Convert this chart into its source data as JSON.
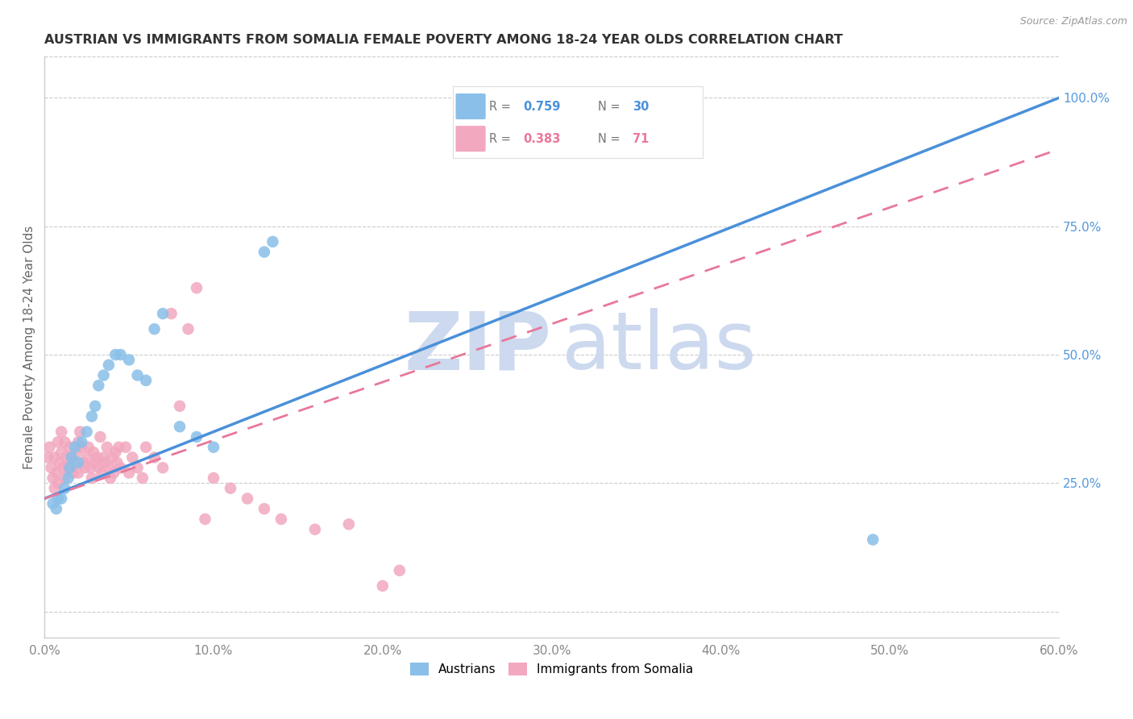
{
  "title": "AUSTRIAN VS IMMIGRANTS FROM SOMALIA FEMALE POVERTY AMONG 18-24 YEAR OLDS CORRELATION CHART",
  "source": "Source: ZipAtlas.com",
  "ylabel": "Female Poverty Among 18-24 Year Olds",
  "right_yticks": [
    0.0,
    0.25,
    0.5,
    0.75,
    1.0
  ],
  "right_yticklabels": [
    "",
    "25.0%",
    "50.0%",
    "75.0%",
    "100.0%"
  ],
  "xlim": [
    0.0,
    0.6
  ],
  "ylim": [
    -0.05,
    1.08
  ],
  "blue_R": 0.759,
  "blue_N": 30,
  "pink_R": 0.383,
  "pink_N": 71,
  "blue_color": "#89bfe8",
  "pink_color": "#f2a8bf",
  "blue_line_color": "#4a90d9",
  "pink_line_color": "#e8789a",
  "blue_line_x0": 0.0,
  "blue_line_y0": 0.22,
  "blue_line_x1": 0.6,
  "blue_line_y1": 1.0,
  "pink_line_x0": 0.0,
  "pink_line_y0": 0.22,
  "pink_line_x1": 0.6,
  "pink_line_y1": 0.9,
  "watermark_zip": "ZIP",
  "watermark_atlas": "atlas",
  "watermark_color": "#ccd9ee",
  "legend_label_blue": "Austrians",
  "legend_label_pink": "Immigrants from Somalia",
  "blue_scatter_x": [
    0.005,
    0.007,
    0.008,
    0.01,
    0.012,
    0.014,
    0.015,
    0.016,
    0.018,
    0.02,
    0.022,
    0.025,
    0.028,
    0.03,
    0.032,
    0.035,
    0.038,
    0.042,
    0.045,
    0.05,
    0.055,
    0.06,
    0.065,
    0.07,
    0.08,
    0.09,
    0.1,
    0.13,
    0.135,
    0.49
  ],
  "blue_scatter_y": [
    0.21,
    0.2,
    0.22,
    0.22,
    0.24,
    0.26,
    0.28,
    0.3,
    0.32,
    0.29,
    0.33,
    0.35,
    0.38,
    0.4,
    0.44,
    0.46,
    0.48,
    0.5,
    0.5,
    0.49,
    0.46,
    0.45,
    0.55,
    0.58,
    0.36,
    0.34,
    0.32,
    0.7,
    0.72,
    0.14
  ],
  "pink_scatter_x": [
    0.002,
    0.003,
    0.004,
    0.005,
    0.006,
    0.006,
    0.007,
    0.008,
    0.008,
    0.009,
    0.01,
    0.01,
    0.011,
    0.012,
    0.012,
    0.013,
    0.014,
    0.015,
    0.016,
    0.017,
    0.018,
    0.019,
    0.02,
    0.02,
    0.021,
    0.022,
    0.023,
    0.024,
    0.025,
    0.026,
    0.027,
    0.028,
    0.029,
    0.03,
    0.031,
    0.032,
    0.033,
    0.034,
    0.035,
    0.036,
    0.037,
    0.038,
    0.039,
    0.04,
    0.041,
    0.042,
    0.043,
    0.044,
    0.045,
    0.048,
    0.05,
    0.052,
    0.055,
    0.058,
    0.06,
    0.065,
    0.07,
    0.075,
    0.08,
    0.085,
    0.09,
    0.095,
    0.1,
    0.11,
    0.12,
    0.13,
    0.14,
    0.16,
    0.18,
    0.2,
    0.21
  ],
  "pink_scatter_y": [
    0.3,
    0.32,
    0.28,
    0.26,
    0.24,
    0.3,
    0.27,
    0.25,
    0.33,
    0.29,
    0.31,
    0.35,
    0.28,
    0.26,
    0.33,
    0.3,
    0.28,
    0.32,
    0.3,
    0.27,
    0.29,
    0.31,
    0.33,
    0.27,
    0.35,
    0.32,
    0.29,
    0.28,
    0.3,
    0.32,
    0.28,
    0.26,
    0.31,
    0.29,
    0.3,
    0.28,
    0.34,
    0.27,
    0.3,
    0.29,
    0.32,
    0.28,
    0.26,
    0.3,
    0.27,
    0.31,
    0.29,
    0.32,
    0.28,
    0.32,
    0.27,
    0.3,
    0.28,
    0.26,
    0.32,
    0.3,
    0.28,
    0.58,
    0.4,
    0.55,
    0.63,
    0.18,
    0.26,
    0.24,
    0.22,
    0.2,
    0.18,
    0.16,
    0.17,
    0.05,
    0.08
  ]
}
